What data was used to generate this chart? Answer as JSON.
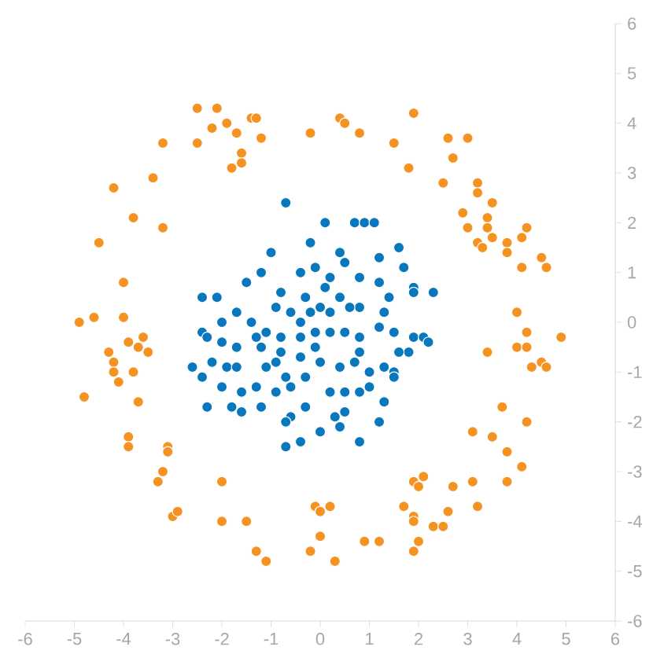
{
  "chart_data": {
    "type": "scatter",
    "marker": "circle",
    "xlim": [
      -6,
      6
    ],
    "ylim": [
      -6,
      6
    ],
    "xticks": [
      -6,
      -5,
      -4,
      -3,
      -2,
      -1,
      0,
      1,
      2,
      3,
      4,
      5,
      6
    ],
    "yticks": [
      -6,
      -5,
      -4,
      -3,
      -2,
      -1,
      0,
      1,
      2,
      3,
      4,
      5,
      6
    ],
    "series": [
      {
        "color": "#f59322",
        "x": [
          -4.9,
          -4.6,
          -4.0,
          -4.0,
          -4.5,
          -3.8,
          -3.2,
          -4.2,
          -3.4,
          -3.2,
          -2.5,
          -2.5,
          -2.1,
          -2.2,
          -1.9,
          -1.4,
          -1.3,
          -1.7,
          -1.2,
          -1.6,
          -1.8,
          -1.6,
          -0.2,
          0.4,
          0.5,
          0.8,
          1.9,
          1.5,
          1.8,
          2.6,
          3.0,
          2.7,
          2.5,
          3.2,
          3.2,
          3.5,
          2.9,
          3.0,
          3.4,
          3.4,
          3.5,
          3.2,
          3.3,
          3.8,
          4.1,
          4.2,
          3.8,
          4.1,
          4.5,
          4.6,
          4.0,
          -4.3,
          -3.9,
          -3.7,
          -3.6,
          -3.5,
          -4.2,
          -4.2,
          -4.1,
          -3.8,
          -4.8,
          -3.7,
          -3.9,
          -3.9,
          -3.1,
          -3.1,
          -3.2,
          -3.3,
          -3.0,
          -2.9,
          -2.0,
          -2.0,
          -1.5,
          -1.3,
          -1.1,
          -0.1,
          0.0,
          0.0,
          -0.2,
          4.2,
          4.9,
          3.4,
          4.0,
          4.2,
          4.3,
          4.5,
          4.6,
          3.7,
          4.2,
          3.1,
          3.5,
          3.8,
          4.1,
          3.8,
          3.1,
          3.2,
          1.9,
          2.0,
          2.1,
          2.7,
          1.7,
          1.9,
          1.9,
          2.6,
          2.3,
          2.5,
          2.0,
          1.9,
          0.9,
          1.2,
          0.3,
          0.2
        ],
        "values": [
          0.0,
          0.1,
          0.8,
          0.1,
          1.6,
          2.1,
          1.9,
          2.7,
          2.9,
          3.6,
          3.6,
          4.3,
          4.3,
          3.9,
          4.0,
          4.1,
          4.1,
          3.8,
          3.7,
          3.4,
          3.1,
          3.2,
          3.8,
          4.1,
          4.0,
          3.8,
          4.2,
          3.6,
          3.1,
          3.7,
          3.7,
          3.3,
          2.8,
          2.8,
          2.6,
          2.4,
          2.2,
          1.9,
          2.1,
          1.9,
          1.7,
          1.6,
          1.5,
          1.6,
          1.7,
          1.9,
          1.4,
          1.1,
          1.3,
          1.1,
          0.2,
          -0.6,
          -0.4,
          -0.5,
          -0.3,
          -0.6,
          -0.8,
          -1.0,
          -1.2,
          -1.0,
          -1.5,
          -1.6,
          -2.3,
          -2.5,
          -2.5,
          -2.6,
          -3.0,
          -3.2,
          -3.9,
          -3.8,
          -3.2,
          -4.0,
          -4.0,
          -4.6,
          -4.8,
          -3.7,
          -3.8,
          -4.3,
          -4.6,
          -0.2,
          -0.3,
          -0.6,
          -0.5,
          -0.5,
          -0.9,
          -0.8,
          -0.9,
          -1.7,
          -2.0,
          -2.2,
          -2.3,
          -2.6,
          -2.9,
          -3.2,
          -3.2,
          -3.7,
          -3.2,
          -3.3,
          -3.1,
          -3.3,
          -3.7,
          -3.9,
          -4.0,
          -3.8,
          -4.1,
          -4.1,
          -4.4,
          -4.6,
          -4.4,
          -4.4,
          -4.8,
          -3.7
        ]
      },
      {
        "color": "#0877bd",
        "x": [
          -0.7,
          0.1,
          0.7,
          0.9,
          1.1,
          -0.2,
          0.4,
          1.2,
          1.6,
          1.7,
          1.9,
          1.9,
          2.3,
          -2.4,
          -2.1,
          -1.5,
          -1.0,
          -1.2,
          -1.7,
          -1.4,
          -0.9,
          -0.8,
          -0.4,
          -0.1,
          0.2,
          0.5,
          0.8,
          1.2,
          1.4,
          1.3,
          0.8,
          0.4,
          0.0,
          -0.3,
          -0.6,
          -1.1,
          -1.3,
          -1.7,
          -2.0,
          -2.4,
          -2.2,
          -1.9,
          -2.0,
          -1.6,
          -1.1,
          -0.8,
          -0.4,
          -0.1,
          0.2,
          0.5,
          0.8,
          1.2,
          1.5,
          1.9,
          2.1,
          2.2,
          1.8,
          1.3,
          1.0,
          0.7,
          0.4,
          0.0,
          -0.3,
          -0.6,
          -0.9,
          -1.2,
          -1.6,
          -1.7,
          -0.6,
          -0.3,
          0.2,
          0.5,
          0.8,
          1.3,
          1.2,
          0.8,
          0.4,
          0.0,
          -0.4,
          -0.7,
          -0.1,
          0.2,
          -0.4,
          -0.8,
          -1.2,
          0.8,
          1.5,
          1.6,
          -2.0,
          -2.6,
          -2.4,
          -2.3,
          -2.3,
          -0.7,
          -0.2,
          0.1,
          0.6,
          1.5,
          1.0,
          0.5,
          0.3,
          -1.3,
          -1.8,
          -0.9,
          -0.7,
          -0.4
        ],
        "values": [
          2.4,
          2.0,
          2.0,
          2.0,
          2.0,
          1.6,
          1.4,
          1.3,
          1.5,
          1.1,
          0.7,
          0.6,
          0.6,
          0.5,
          0.5,
          0.8,
          1.4,
          1.0,
          0.2,
          0.0,
          0.3,
          0.6,
          1.0,
          1.1,
          0.9,
          1.2,
          0.9,
          0.8,
          0.5,
          0.2,
          0.3,
          0.5,
          0.3,
          0.5,
          0.2,
          -0.2,
          -0.3,
          -0.5,
          -0.4,
          -0.2,
          -0.8,
          -0.9,
          -1.3,
          -1.4,
          -0.9,
          -0.6,
          -0.3,
          -0.2,
          -0.2,
          -0.2,
          -0.3,
          -0.1,
          -0.2,
          -0.3,
          -0.3,
          -0.4,
          -0.6,
          -0.9,
          -1.0,
          -0.8,
          -0.9,
          -0.8,
          -1.1,
          -1.3,
          -1.4,
          -1.7,
          -1.8,
          -0.9,
          -1.9,
          -1.7,
          -1.4,
          -1.8,
          -1.4,
          -1.6,
          -2.0,
          -2.4,
          -2.1,
          -2.2,
          -2.4,
          -2.0,
          -0.5,
          0.2,
          0.0,
          -0.3,
          -0.5,
          -0.6,
          -1.0,
          -0.6,
          0.0,
          -0.9,
          -1.1,
          -0.3,
          -1.7,
          -2.5,
          0.2,
          0.7,
          0.3,
          -1.1,
          -1.3,
          -1.4,
          -1.9,
          -1.3,
          -1.7,
          -0.8,
          -1.1,
          -0.7
        ]
      }
    ]
  }
}
